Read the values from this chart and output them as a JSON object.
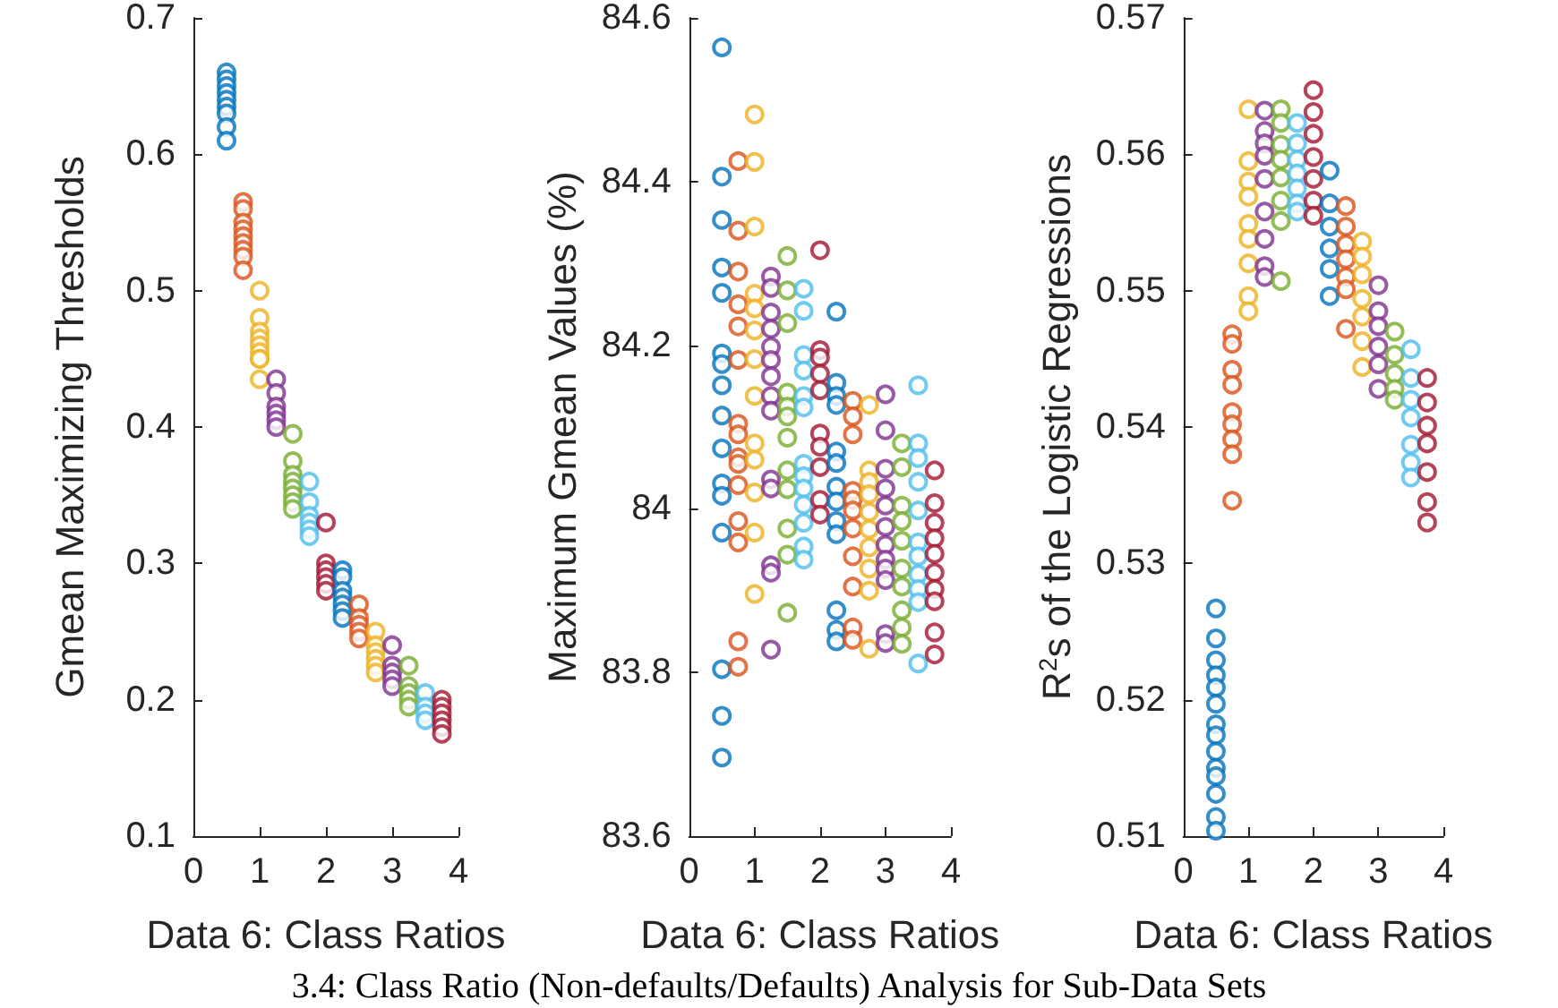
{
  "chart_data": [
    {
      "type": "scatter",
      "xlabel": "Data 6: Class Ratios",
      "ylabel": "Gmean Maximizing Thresholds",
      "xlim": [
        0,
        4
      ],
      "xticks": [
        0,
        1,
        2,
        3,
        4
      ],
      "ylim": [
        0.1,
        0.7
      ],
      "yticks": [
        0.1,
        0.2,
        0.3,
        0.4,
        0.5,
        0.6,
        0.7
      ],
      "grid": false,
      "marker": "circle",
      "annotations": [
        "3.4: Class Ratio (Non-defaults/Defaults) Analysis for Sub-Data Sets"
      ],
      "series": [
        {
          "color": "#0072bd",
          "x": [
            0.5,
            0.5,
            0.5,
            0.5,
            0.5,
            0.5,
            0.5,
            0.5,
            0.5
          ],
          "values": [
            0.66,
            0.655,
            0.65,
            0.645,
            0.64,
            0.635,
            0.63,
            0.62,
            0.61
          ]
        },
        {
          "color": "#d95319",
          "x": [
            0.75,
            0.75,
            0.75,
            0.75,
            0.75,
            0.75,
            0.75,
            0.75,
            0.75
          ],
          "values": [
            0.565,
            0.56,
            0.55,
            0.545,
            0.54,
            0.535,
            0.53,
            0.525,
            0.515
          ]
        },
        {
          "color": "#edb120",
          "x": [
            1,
            1,
            1,
            1,
            1,
            1,
            1,
            1,
            1
          ],
          "values": [
            0.5,
            0.48,
            0.47,
            0.465,
            0.46,
            0.455,
            0.45,
            0.45,
            0.435
          ]
        },
        {
          "color": "#7e2f8e",
          "x": [
            1.25,
            1.25,
            1.25,
            1.25,
            1.25,
            1.25
          ],
          "values": [
            0.435,
            0.425,
            0.415,
            0.41,
            0.405,
            0.4
          ]
        },
        {
          "color": "#77ac30",
          "x": [
            1.5,
            1.5,
            1.5,
            1.5,
            1.5,
            1.5,
            1.5,
            1.5
          ],
          "values": [
            0.395,
            0.375,
            0.365,
            0.36,
            0.355,
            0.35,
            0.345,
            0.34
          ]
        },
        {
          "color": "#4dbeee",
          "x": [
            1.75,
            1.75,
            1.75,
            1.75,
            1.75,
            1.75
          ],
          "values": [
            0.36,
            0.345,
            0.335,
            0.33,
            0.325,
            0.32
          ]
        },
        {
          "color": "#a2142f",
          "x": [
            2,
            2,
            2,
            2,
            2,
            2
          ],
          "values": [
            0.33,
            0.3,
            0.295,
            0.29,
            0.285,
            0.28
          ]
        },
        {
          "color": "#0072bd",
          "x": [
            2.25,
            2.25,
            2.25,
            2.25,
            2.25,
            2.25,
            2.25
          ],
          "values": [
            0.295,
            0.29,
            0.28,
            0.275,
            0.27,
            0.265,
            0.26
          ]
        },
        {
          "color": "#d95319",
          "x": [
            2.5,
            2.5,
            2.5,
            2.5,
            2.5
          ],
          "values": [
            0.27,
            0.26,
            0.255,
            0.25,
            0.245
          ]
        },
        {
          "color": "#edb120",
          "x": [
            2.75,
            2.75,
            2.75,
            2.75,
            2.75,
            2.75
          ],
          "values": [
            0.25,
            0.24,
            0.235,
            0.23,
            0.225,
            0.22
          ]
        },
        {
          "color": "#7e2f8e",
          "x": [
            3,
            3,
            3,
            3,
            3
          ],
          "values": [
            0.24,
            0.225,
            0.22,
            0.215,
            0.21
          ]
        },
        {
          "color": "#77ac30",
          "x": [
            3.25,
            3.25,
            3.25,
            3.25,
            3.25
          ],
          "values": [
            0.225,
            0.21,
            0.205,
            0.2,
            0.195
          ]
        },
        {
          "color": "#4dbeee",
          "x": [
            3.5,
            3.5,
            3.5,
            3.5
          ],
          "values": [
            0.205,
            0.195,
            0.19,
            0.185
          ]
        },
        {
          "color": "#a2142f",
          "x": [
            3.75,
            3.75,
            3.75,
            3.75,
            3.75,
            3.75
          ],
          "values": [
            0.2,
            0.195,
            0.19,
            0.185,
            0.18,
            0.175
          ]
        }
      ]
    },
    {
      "type": "scatter",
      "xlabel": "Data 6: Class Ratios",
      "ylabel": "Maximum Gmean Values (%)",
      "xlim": [
        0,
        4
      ],
      "xticks": [
        0,
        1,
        2,
        3,
        4
      ],
      "ylim": [
        83.6,
        84.6
      ],
      "yticks": [
        83.6,
        83.8,
        84,
        84.2,
        84.4,
        84.6
      ],
      "grid": false,
      "marker": "circle",
      "series": [
        {
          "color": "#0072bd",
          "x": [
            0.5,
            0.5,
            0.5,
            0.5,
            0.5,
            0.5,
            0.5,
            0.5,
            0.5,
            0.5,
            0.5,
            0.5,
            0.5,
            0.5,
            0.5,
            0.5
          ],
          "values": [
            84.564,
            84.406,
            84.353,
            84.295,
            84.264,
            84.19,
            84.177,
            84.151,
            84.114,
            84.074,
            84.031,
            84.016,
            83.971,
            83.804,
            83.747,
            83.696
          ]
        },
        {
          "color": "#d95319",
          "x": [
            0.75,
            0.75,
            0.75,
            0.75,
            0.75,
            0.75,
            0.75,
            0.75,
            0.75,
            0.75,
            0.75,
            0.75,
            0.75,
            0.75,
            0.75
          ],
          "values": [
            84.425,
            84.34,
            84.29,
            84.25,
            84.223,
            84.182,
            84.104,
            84.091,
            84.063,
            84.055,
            84.029,
            83.985,
            83.959,
            83.838,
            83.807
          ]
        },
        {
          "color": "#edb120",
          "x": [
            1,
            1,
            1,
            1,
            1,
            1,
            1,
            1,
            1,
            1,
            1,
            1,
            1
          ],
          "values": [
            84.482,
            84.424,
            84.345,
            84.263,
            84.245,
            84.218,
            84.183,
            84.138,
            84.08,
            84.06,
            84.02,
            83.971,
            83.896
          ]
        },
        {
          "color": "#7e2f8e",
          "x": [
            1.25,
            1.25,
            1.25,
            1.25,
            1.25,
            1.25,
            1.25,
            1.25,
            1.25,
            1.25,
            1.25,
            1.25,
            1.25,
            1.25
          ],
          "values": [
            84.284,
            84.27,
            84.24,
            84.22,
            84.198,
            84.182,
            84.162,
            84.138,
            84.12,
            84.036,
            84.025,
            83.931,
            83.922,
            83.828
          ]
        },
        {
          "color": "#77ac30",
          "x": [
            1.5,
            1.5,
            1.5,
            1.5,
            1.5,
            1.5,
            1.5,
            1.5,
            1.5,
            1.5,
            1.5,
            1.5
          ],
          "values": [
            84.309,
            84.267,
            84.227,
            84.142,
            84.125,
            84.113,
            84.087,
            84.047,
            84.024,
            83.976,
            83.944,
            83.873
          ]
        },
        {
          "color": "#4dbeee",
          "x": [
            1.75,
            1.75,
            1.75,
            1.75,
            1.75,
            1.75,
            1.75,
            1.75,
            1.75,
            1.75,
            1.75,
            1.75,
            1.75
          ],
          "values": [
            84.269,
            84.242,
            84.188,
            84.169,
            84.138,
            84.124,
            84.055,
            84.04,
            84.025,
            84.005,
            83.983,
            83.954,
            83.938
          ]
        },
        {
          "color": "#a2142f",
          "x": [
            2,
            2,
            2,
            2,
            2,
            2,
            2,
            2,
            2,
            2
          ],
          "values": [
            84.316,
            84.194,
            84.185,
            84.165,
            84.145,
            84.092,
            84.076,
            84.051,
            84.011,
            83.993
          ]
        },
        {
          "color": "#0072bd",
          "x": [
            2.25,
            2.25,
            2.25,
            2.25,
            2.25,
            2.25,
            2.25,
            2.25,
            2.25,
            2.25,
            2.25,
            2.25,
            2.25
          ],
          "values": [
            84.241,
            84.154,
            84.138,
            84.127,
            84.07,
            84.056,
            84.027,
            84.009,
            83.985,
            83.969,
            83.876,
            83.852,
            83.838
          ]
        },
        {
          "color": "#d95319",
          "x": [
            2.5,
            2.5,
            2.5,
            2.5,
            2.5,
            2.5,
            2.5,
            2.5,
            2.5,
            2.5,
            2.5
          ],
          "values": [
            84.132,
            84.113,
            84.091,
            84.022,
            84.011,
            83.998,
            83.976,
            83.942,
            83.905,
            83.855,
            83.84
          ]
        },
        {
          "color": "#edb120",
          "x": [
            2.75,
            2.75,
            2.75,
            2.75,
            2.75,
            2.75,
            2.75,
            2.75,
            2.75,
            2.75
          ],
          "values": [
            84.127,
            84.047,
            84.033,
            84.018,
            83.996,
            83.975,
            83.953,
            83.927,
            83.9,
            83.829
          ]
        },
        {
          "color": "#7e2f8e",
          "x": [
            3,
            3,
            3,
            3,
            3,
            3,
            3,
            3,
            3,
            3,
            3,
            3
          ],
          "values": [
            84.14,
            84.096,
            84.049,
            84.025,
            84.004,
            83.978,
            83.956,
            83.938,
            83.927,
            83.913,
            83.847,
            83.836
          ]
        },
        {
          "color": "#77ac30",
          "x": [
            3.25,
            3.25,
            3.25,
            3.25,
            3.25,
            3.25,
            3.25,
            3.25,
            3.25,
            3.25
          ],
          "values": [
            84.08,
            84.051,
            84.004,
            83.985,
            83.961,
            83.927,
            83.905,
            83.876,
            83.855,
            83.835
          ]
        },
        {
          "color": "#4dbeee",
          "x": [
            3.5,
            3.5,
            3.5,
            3.5,
            3.5,
            3.5,
            3.5,
            3.5,
            3.5,
            3.5,
            3.5
          ],
          "values": [
            84.151,
            84.08,
            84.062,
            84.033,
            83.998,
            83.959,
            83.942,
            83.92,
            83.902,
            83.886,
            83.811
          ]
        },
        {
          "color": "#a2142f",
          "x": [
            3.75,
            3.75,
            3.75,
            3.75,
            3.75,
            3.75,
            3.75,
            3.75,
            3.75,
            3.75
          ],
          "values": [
            84.047,
            84.007,
            83.983,
            83.964,
            83.945,
            83.922,
            83.902,
            83.887,
            83.849,
            83.822
          ]
        }
      ]
    },
    {
      "type": "scatter",
      "xlabel": "Data 6: Class Ratios",
      "ylabel": "R$^{2}$s of the Logistic Regressions",
      "xlim": [
        0,
        4
      ],
      "xticks": [
        0,
        1,
        2,
        3,
        4
      ],
      "ylim": [
        0.51,
        0.57
      ],
      "yticks": [
        0.51,
        0.52,
        0.53,
        0.54,
        0.55,
        0.56,
        0.57
      ],
      "grid": false,
      "marker": "circle",
      "series": [
        {
          "color": "#0072bd",
          "x": [
            0.5,
            0.5,
            0.5,
            0.5,
            0.5,
            0.5,
            0.5,
            0.5,
            0.5,
            0.5,
            0.5,
            0.5,
            0.5,
            0.5
          ],
          "values": [
            0.5267,
            0.5245,
            0.5229,
            0.5218,
            0.5209,
            0.5197,
            0.5182,
            0.5174,
            0.5162,
            0.515,
            0.5144,
            0.5131,
            0.5114,
            0.5104
          ]
        },
        {
          "color": "#d95319",
          "x": [
            0.75,
            0.75,
            0.75,
            0.75,
            0.75,
            0.75,
            0.75,
            0.75,
            0.75
          ],
          "values": [
            0.5468,
            0.5461,
            0.5442,
            0.5431,
            0.5411,
            0.5402,
            0.5391,
            0.538,
            0.5346
          ]
        },
        {
          "color": "#edb120",
          "x": [
            1,
            1,
            1,
            1,
            1,
            1,
            1,
            1,
            1
          ],
          "values": [
            0.5633,
            0.5595,
            0.558,
            0.5569,
            0.5549,
            0.5538,
            0.552,
            0.5496,
            0.5485
          ]
        },
        {
          "color": "#7e2f8e",
          "x": [
            1.25,
            1.25,
            1.25,
            1.25,
            1.25,
            1.25,
            1.25,
            1.25,
            1.25
          ],
          "values": [
            0.5632,
            0.5617,
            0.5608,
            0.5599,
            0.5582,
            0.5558,
            0.5538,
            0.5518,
            0.551
          ]
        },
        {
          "color": "#77ac30",
          "x": [
            1.5,
            1.5,
            1.5,
            1.5,
            1.5,
            1.5,
            1.5,
            1.5
          ],
          "values": [
            0.5633,
            0.5623,
            0.5607,
            0.5596,
            0.5583,
            0.5566,
            0.5551,
            0.5507
          ]
        },
        {
          "color": "#4dbeee",
          "x": [
            1.75,
            1.75,
            1.75,
            1.75,
            1.75,
            1.75,
            1.75
          ],
          "values": [
            0.5623,
            0.5608,
            0.5596,
            0.5586,
            0.5575,
            0.5564,
            0.5558
          ]
        },
        {
          "color": "#a2142f",
          "x": [
            2,
            2,
            2,
            2,
            2,
            2,
            2
          ],
          "values": [
            0.5647,
            0.5631,
            0.5615,
            0.5598,
            0.5582,
            0.5566,
            0.5555
          ]
        },
        {
          "color": "#0072bd",
          "x": [
            2.25,
            2.25,
            2.25,
            2.25,
            2.25,
            2.25
          ],
          "values": [
            0.5588,
            0.5564,
            0.5547,
            0.5531,
            0.5516,
            0.5496
          ]
        },
        {
          "color": "#d95319",
          "x": [
            2.5,
            2.5,
            2.5,
            2.5,
            2.5,
            2.5,
            2.5
          ],
          "values": [
            0.5562,
            0.5547,
            0.5534,
            0.5523,
            0.551,
            0.5501,
            0.5472
          ]
        },
        {
          "color": "#edb120",
          "x": [
            2.75,
            2.75,
            2.75,
            2.75,
            2.75,
            2.75,
            2.75
          ],
          "values": [
            0.5536,
            0.5525,
            0.5512,
            0.5494,
            0.5481,
            0.5463,
            0.5444
          ]
        },
        {
          "color": "#7e2f8e",
          "x": [
            3,
            3,
            3,
            3,
            3,
            3
          ],
          "values": [
            0.5504,
            0.5485,
            0.5474,
            0.5459,
            0.5446,
            0.5428
          ]
        },
        {
          "color": "#77ac30",
          "x": [
            3.25,
            3.25,
            3.25,
            3.25,
            3.25
          ],
          "values": [
            0.547,
            0.5453,
            0.5439,
            0.5428,
            0.542
          ]
        },
        {
          "color": "#4dbeee",
          "x": [
            3.5,
            3.5,
            3.5,
            3.5,
            3.5,
            3.5,
            3.5
          ],
          "values": [
            0.5457,
            0.5436,
            0.542,
            0.5407,
            0.5387,
            0.5374,
            0.5363
          ]
        },
        {
          "color": "#a2142f",
          "x": [
            3.75,
            3.75,
            3.75,
            3.75,
            3.75,
            3.75,
            3.75
          ],
          "values": [
            0.5436,
            0.5418,
            0.5401,
            0.5388,
            0.5367,
            0.5345,
            0.533
          ]
        }
      ]
    }
  ]
}
